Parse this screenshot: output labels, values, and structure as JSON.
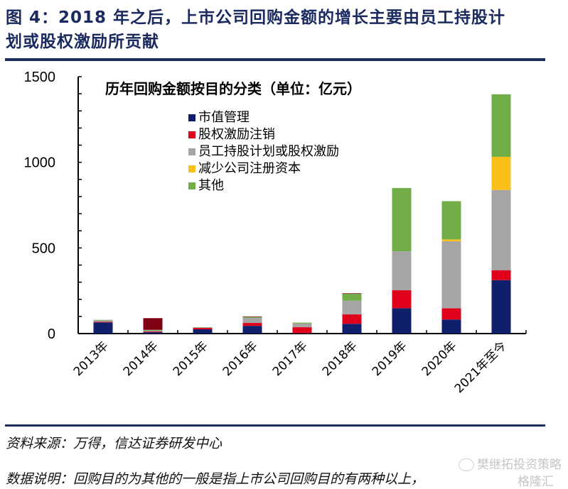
{
  "figure": {
    "title_line1": "图 4：2018 年之后，上市公司回购金额的增长主要由员工持股计",
    "title_line2": "划或股权激励所贡献",
    "source": "资料来源：万得，信达证券研发中心",
    "note": "数据说明：回购目的为其他的一般是指上市公司回购目的有两种以上，",
    "watermark_1": "樊继拓投资策略",
    "watermark_2": "格隆汇"
  },
  "chart_data": {
    "type": "bar",
    "stacked": true,
    "title": "历年回购金额按目的分类（单位：亿元）",
    "xlabel": "",
    "ylabel": "",
    "ylim": [
      0,
      1500
    ],
    "yticks": [
      0,
      500,
      1000,
      1500
    ],
    "y_minor_step": 100,
    "grid": false,
    "legend_position": "top-left-inside",
    "categories": [
      "2013年",
      "2014年",
      "2015年",
      "2016年",
      "2017年",
      "2018年",
      "2019年",
      "2020年",
      "2021年至今"
    ],
    "series": [
      {
        "name": "市值管理",
        "color": "#0f1f6b",
        "values": [
          65,
          8,
          25,
          45,
          2,
          57,
          148,
          82,
          312
        ]
      },
      {
        "name": "股权激励注销",
        "color": "#e0001b",
        "values": [
          4,
          4,
          8,
          17,
          35,
          55,
          105,
          66,
          58
        ]
      },
      {
        "name": "员工持股计划或股权激励",
        "color": "#a5a5a5",
        "values": [
          8,
          6,
          2,
          30,
          22,
          80,
          227,
          391,
          468
        ]
      },
      {
        "name": "减少公司注册资本",
        "color": "#fbbf1a",
        "values": [
          0,
          0,
          0,
          0,
          0,
          0,
          0,
          11,
          194
        ]
      },
      {
        "name": "其他",
        "color": "#70ad47",
        "values": [
          3,
          4,
          2,
          5,
          5,
          40,
          370,
          223,
          365
        ]
      },
      {
        "name": "",
        "color": "#7f0012",
        "values": [
          0,
          68,
          0,
          3,
          0,
          3,
          0,
          0,
          0
        ]
      }
    ]
  }
}
